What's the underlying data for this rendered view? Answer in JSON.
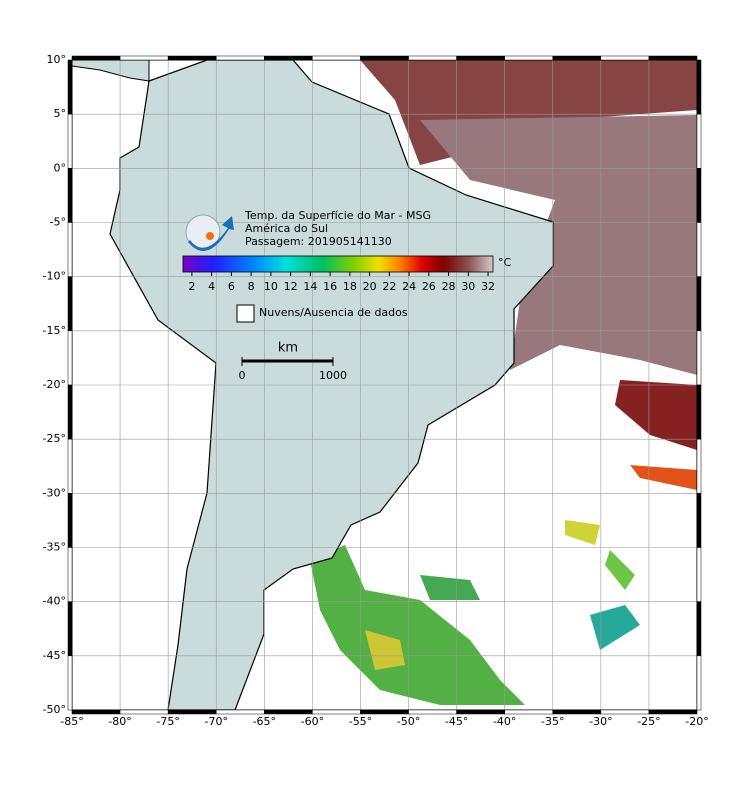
{
  "map": {
    "title": "Temp. da Superfície do Mar - MSG",
    "region": "América do Sul",
    "pass": "Passagem: 201905141130",
    "colorbar": {
      "unit": "°C",
      "clim": [
        1.1,
        32.5
      ],
      "ticks": [
        2,
        4,
        6,
        8,
        10,
        12,
        14,
        16,
        18,
        20,
        22,
        24,
        26,
        28,
        30,
        32
      ]
    },
    "legend": "Nuvens/Ausencia de dados",
    "scalebar": {
      "unit": "km",
      "ticks": [
        0,
        1000
      ]
    },
    "xlim": [
      -85,
      -20
    ],
    "ylim": [
      -50,
      10
    ],
    "xticks": [
      {
        "value": -85,
        "label": "-85°"
      },
      {
        "value": -80,
        "label": "-80°"
      },
      {
        "value": -75,
        "label": "-75°"
      },
      {
        "value": -70,
        "label": "-70°"
      },
      {
        "value": -65,
        "label": "-65°"
      },
      {
        "value": -60,
        "label": "-60°"
      },
      {
        "value": -55,
        "label": "-55°"
      },
      {
        "value": -50,
        "label": "-50°"
      },
      {
        "value": -45,
        "label": "-45°"
      },
      {
        "value": -40,
        "label": "-40°"
      },
      {
        "value": -35,
        "label": "-35°"
      },
      {
        "value": -30,
        "label": "-30°"
      },
      {
        "value": -25,
        "label": "-25°"
      },
      {
        "value": -20,
        "label": "-20°"
      }
    ],
    "yticks": [
      {
        "value": 10,
        "label": "10°"
      },
      {
        "value": 5,
        "label": "5°"
      },
      {
        "value": 0,
        "label": "0°"
      },
      {
        "value": -5,
        "label": "-5°"
      },
      {
        "value": -10,
        "label": "-10°"
      },
      {
        "value": -15,
        "label": "-15°"
      },
      {
        "value": -20,
        "label": "-20°"
      },
      {
        "value": -25,
        "label": "-25°"
      },
      {
        "value": -30,
        "label": "-30°"
      },
      {
        "value": -35,
        "label": "-35°"
      },
      {
        "value": -40,
        "label": "-40°"
      },
      {
        "value": -45,
        "label": "-45°"
      },
      {
        "value": -50,
        "label": "-50°"
      }
    ]
  }
}
